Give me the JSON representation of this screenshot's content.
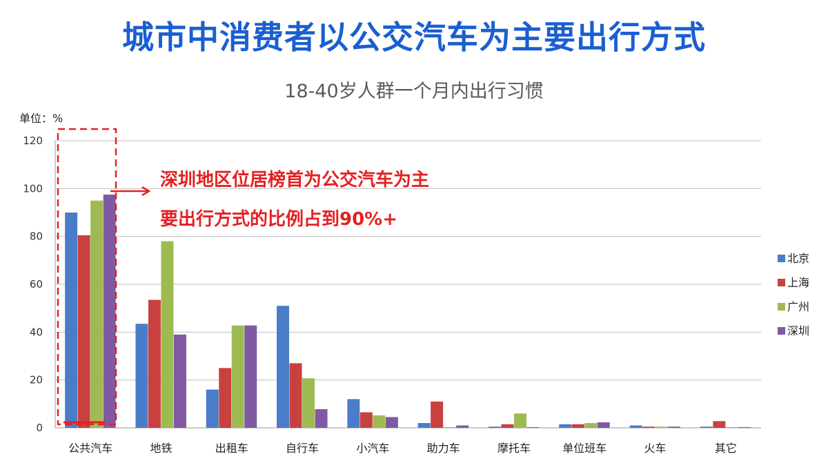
{
  "headline": "城市中消费者以公交汽车为主要出行方式",
  "unit_label": "单位：%",
  "callout": {
    "line1": "深圳地区位居榜首为公交汽车为主",
    "line2": "要出行方式的比例占到90%+"
  },
  "colors": {
    "headline": "#1a5fd0",
    "callout": "#e52020",
    "highlight_box": "#e52020"
  },
  "chart_data": {
    "type": "bar",
    "title": "18-40岁人群一个月内出行习惯",
    "xlabel": "",
    "ylabel": "",
    "ylim": [
      0,
      120
    ],
    "yticks": [
      0,
      20,
      40,
      60,
      80,
      100,
      120
    ],
    "grid": true,
    "legend_position": "right",
    "categories": [
      "公共汽车",
      "地铁",
      "出租车",
      "自行车",
      "小汽车",
      "助力车",
      "摩托车",
      "单位班车",
      "火车",
      "其它"
    ],
    "series": [
      {
        "name": "北京",
        "color": "#4a7cc9",
        "values": [
          90,
          43.5,
          16,
          51,
          12,
          2,
          0.5,
          1.5,
          1,
          0.5
        ]
      },
      {
        "name": "上海",
        "color": "#c9413f",
        "values": [
          80.5,
          53.5,
          25,
          27,
          6.5,
          11,
          1.5,
          1.5,
          0.5,
          2.8
        ]
      },
      {
        "name": "广州",
        "color": "#9ebb52",
        "values": [
          95,
          78,
          42.8,
          20.7,
          5.2,
          0.3,
          6,
          2,
          0.5,
          0.3
        ]
      },
      {
        "name": "深圳",
        "color": "#7f5aa3",
        "values": [
          97.5,
          39,
          42.8,
          7.8,
          4.5,
          1,
          0.3,
          2.3,
          0.5,
          0.3
        ]
      }
    ]
  }
}
